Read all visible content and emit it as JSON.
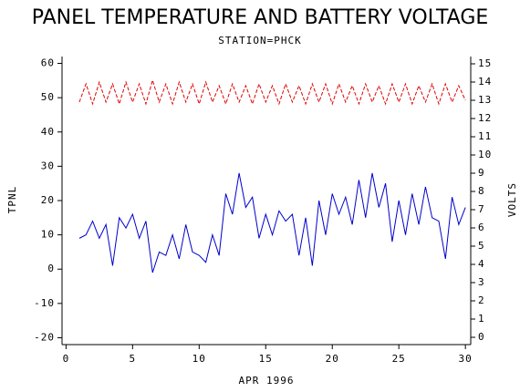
{
  "chart_data": {
    "type": "line",
    "title": "PANEL TEMPERATURE AND BATTERY VOLTAGE",
    "subtitle": "STATION=PHCK",
    "x_label": "APR 1996",
    "y_label": "TPNL",
    "y2_label": "VOLTS",
    "x": [
      1,
      1.5,
      2,
      2.5,
      3,
      3.5,
      4,
      4.5,
      5,
      5.5,
      6,
      6.5,
      7,
      7.5,
      8,
      8.5,
      9,
      9.5,
      10,
      10.5,
      11,
      11.5,
      12,
      12.5,
      13,
      13.5,
      14,
      14.5,
      15,
      15.5,
      16,
      16.5,
      17,
      17.5,
      18,
      18.5,
      19,
      19.5,
      20,
      20.5,
      21,
      21.5,
      22,
      22.5,
      23,
      23.5,
      24,
      24.5,
      25,
      25.5,
      26,
      26.5,
      27,
      27.5,
      28,
      28.5,
      29,
      29.5,
      30
    ],
    "series": [
      {
        "name": "TPNL",
        "color": "#0000cc",
        "axis": "y",
        "values": [
          9,
          10,
          14,
          9,
          13,
          1,
          15,
          12,
          16,
          9,
          14,
          -1,
          5,
          4,
          10,
          3,
          13,
          5,
          4,
          2,
          10,
          4,
          22,
          16,
          28,
          18,
          21,
          9,
          16,
          10,
          17,
          14,
          16,
          4,
          15,
          1,
          20,
          10,
          22,
          16,
          21,
          13,
          26,
          15,
          28,
          18,
          25,
          8,
          20,
          10,
          22,
          13,
          24,
          15,
          14,
          3,
          21,
          13,
          18
        ]
      },
      {
        "name": "VOLTS",
        "color": "#e00000",
        "axis": "y2",
        "dash": true,
        "values": [
          12.9,
          13.9,
          12.8,
          14.0,
          12.9,
          13.9,
          12.8,
          14.0,
          12.9,
          13.9,
          12.8,
          14.1,
          12.9,
          13.9,
          12.8,
          14.0,
          12.9,
          13.9,
          12.8,
          14.0,
          12.9,
          13.8,
          12.8,
          13.9,
          12.9,
          13.8,
          12.8,
          13.9,
          12.9,
          13.8,
          12.8,
          13.9,
          12.9,
          13.8,
          12.8,
          13.9,
          12.9,
          13.9,
          12.8,
          13.9,
          12.9,
          13.8,
          12.8,
          13.9,
          12.9,
          13.8,
          12.8,
          13.9,
          12.9,
          13.9,
          12.8,
          13.8,
          12.9,
          13.9,
          12.8,
          13.9,
          12.9,
          13.8,
          13.0
        ]
      }
    ],
    "xlim": [
      -0.3,
      30.4
    ],
    "xticks": [
      0,
      5,
      10,
      15,
      20,
      25,
      30
    ],
    "ylim": [
      -22,
      62
    ],
    "yticks": [
      -20,
      -10,
      0,
      10,
      20,
      30,
      40,
      50,
      60
    ],
    "y2lim": [
      -0.4,
      15.4
    ],
    "y2ticks": [
      0,
      1,
      2,
      3,
      4,
      5,
      6,
      7,
      8,
      9,
      10,
      11,
      12,
      13,
      14,
      15
    ]
  }
}
